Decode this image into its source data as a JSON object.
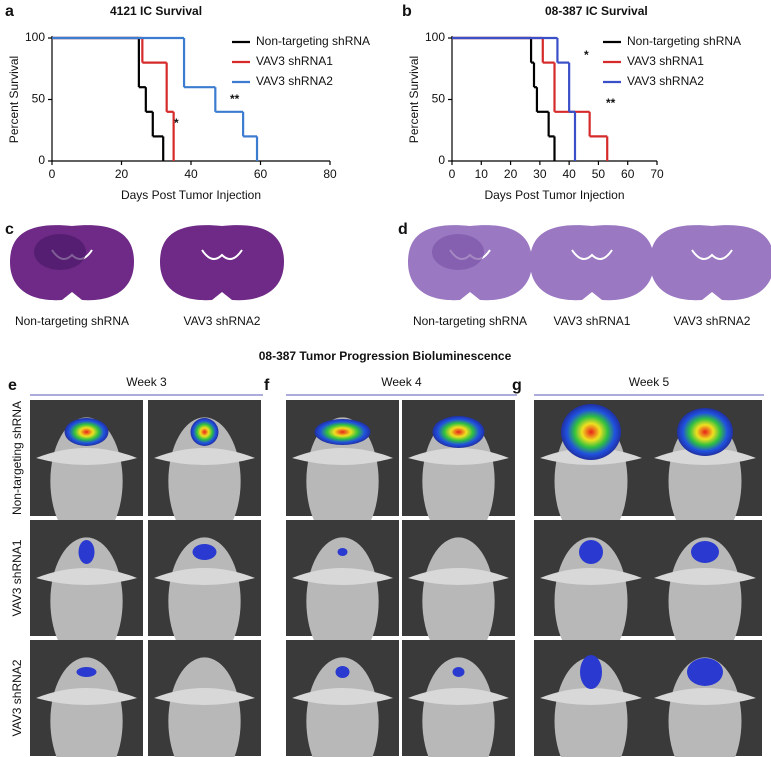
{
  "chart_data": [
    {
      "type": "step",
      "panel": "a",
      "title": "4121 IC Survival",
      "x_label": "Days Post Tumor Injection",
      "y_label": "Percent Survival",
      "xlim": [
        0,
        80
      ],
      "xticks": [
        0,
        20,
        40,
        60,
        80
      ],
      "ylim": [
        0,
        100
      ],
      "yticks": [
        0,
        50,
        100
      ],
      "series": [
        {
          "name": "Non-targeting shRNA",
          "color": "#000000",
          "x": [
            0,
            25,
            27,
            29,
            32
          ],
          "values": [
            100,
            60,
            40,
            20,
            0
          ]
        },
        {
          "name": "VAV3 shRNA1",
          "color": "#d62a2a",
          "x": [
            0,
            26,
            33,
            35
          ],
          "values": [
            100,
            80,
            40,
            0
          ]
        },
        {
          "name": "VAV3 shRNA2",
          "color": "#3b7bd0",
          "x": [
            0,
            38,
            47,
            55,
            59
          ],
          "values": [
            100,
            60,
            40,
            20,
            0
          ]
        }
      ],
      "annotations": [
        "*",
        "**"
      ]
    },
    {
      "type": "step",
      "panel": "b",
      "title": "08-387 IC Survival",
      "x_label": "Days Post Tumor Injection",
      "y_label": "Percent Survival",
      "xlim": [
        0,
        70
      ],
      "xticks": [
        0,
        10,
        20,
        30,
        40,
        50,
        60,
        70
      ],
      "ylim": [
        0,
        100
      ],
      "yticks": [
        0,
        50,
        100
      ],
      "series": [
        {
          "name": "Non-targeting shRNA",
          "color": "#000000",
          "x": [
            0,
            27,
            28,
            29,
            33,
            35
          ],
          "values": [
            100,
            80,
            60,
            40,
            20,
            0
          ]
        },
        {
          "name": "VAV3 shRNA1",
          "color": "#d62a2a",
          "x": [
            0,
            31,
            35,
            47,
            53
          ],
          "values": [
            100,
            80,
            40,
            20,
            0
          ]
        },
        {
          "name": "VAV3 shRNA2",
          "color": "#3b4fc8",
          "x": [
            0,
            36,
            40,
            42
          ],
          "values": [
            100,
            80,
            40,
            0
          ]
        }
      ],
      "annotations": [
        "*",
        "**"
      ]
    }
  ],
  "histology": [
    {
      "panel": "c",
      "captions": [
        "Non-targeting shRNA",
        "VAV3 shRNA2"
      ]
    },
    {
      "panel": "d",
      "captions": [
        "Non-targeting shRNA",
        "VAV3 shRNA1",
        "VAV3 shRNA2"
      ]
    }
  ],
  "bioluminescence": {
    "title": "08-387 Tumor Progression Bioluminescence",
    "panels": [
      {
        "label": "e",
        "week": "Week 3"
      },
      {
        "label": "f",
        "week": "Week 4"
      },
      {
        "label": "g",
        "week": "Week 5"
      }
    ],
    "rows": [
      "Non-targeting shRNA",
      "VAV3 shRNA1",
      "VAV3 shRNA2"
    ]
  }
}
